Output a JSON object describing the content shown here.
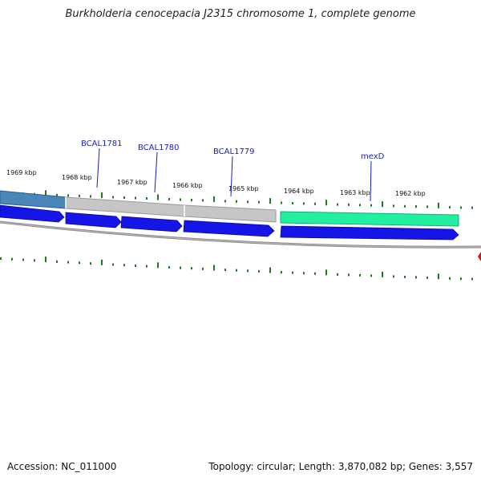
{
  "title": "Burkholderia cenocepacia J2315 chromosome 1, complete genome",
  "footer": {
    "accession": "Accession: NC_011000",
    "summary": "Topology: circular; Length: 3,870,082 bp; Genes: 3,557"
  },
  "colors": {
    "tick": "#1e7a1e",
    "gene_forward": "#1515e8",
    "gene_label": "#1a1acc",
    "backbone": "#8a8a8a",
    "feature_blue": "#4a86b8",
    "feature_gray": "#c6c6c6",
    "feature_teal": "#22f0a0",
    "marker_red": "#e01010"
  },
  "kbp_ticks": [
    {
      "label": "1969 kbp"
    },
    {
      "label": "1968 kbp"
    },
    {
      "label": "1967 kbp"
    },
    {
      "label": "1966 kbp"
    },
    {
      "label": "1965 kbp"
    },
    {
      "label": "1964 kbp"
    },
    {
      "label": "1963 kbp"
    },
    {
      "label": "1962 kbp"
    }
  ],
  "gene_labels": [
    {
      "label": "BCAL1781"
    },
    {
      "label": "BCAL1780"
    },
    {
      "label": "BCAL1779"
    },
    {
      "label": "mexD"
    }
  ]
}
